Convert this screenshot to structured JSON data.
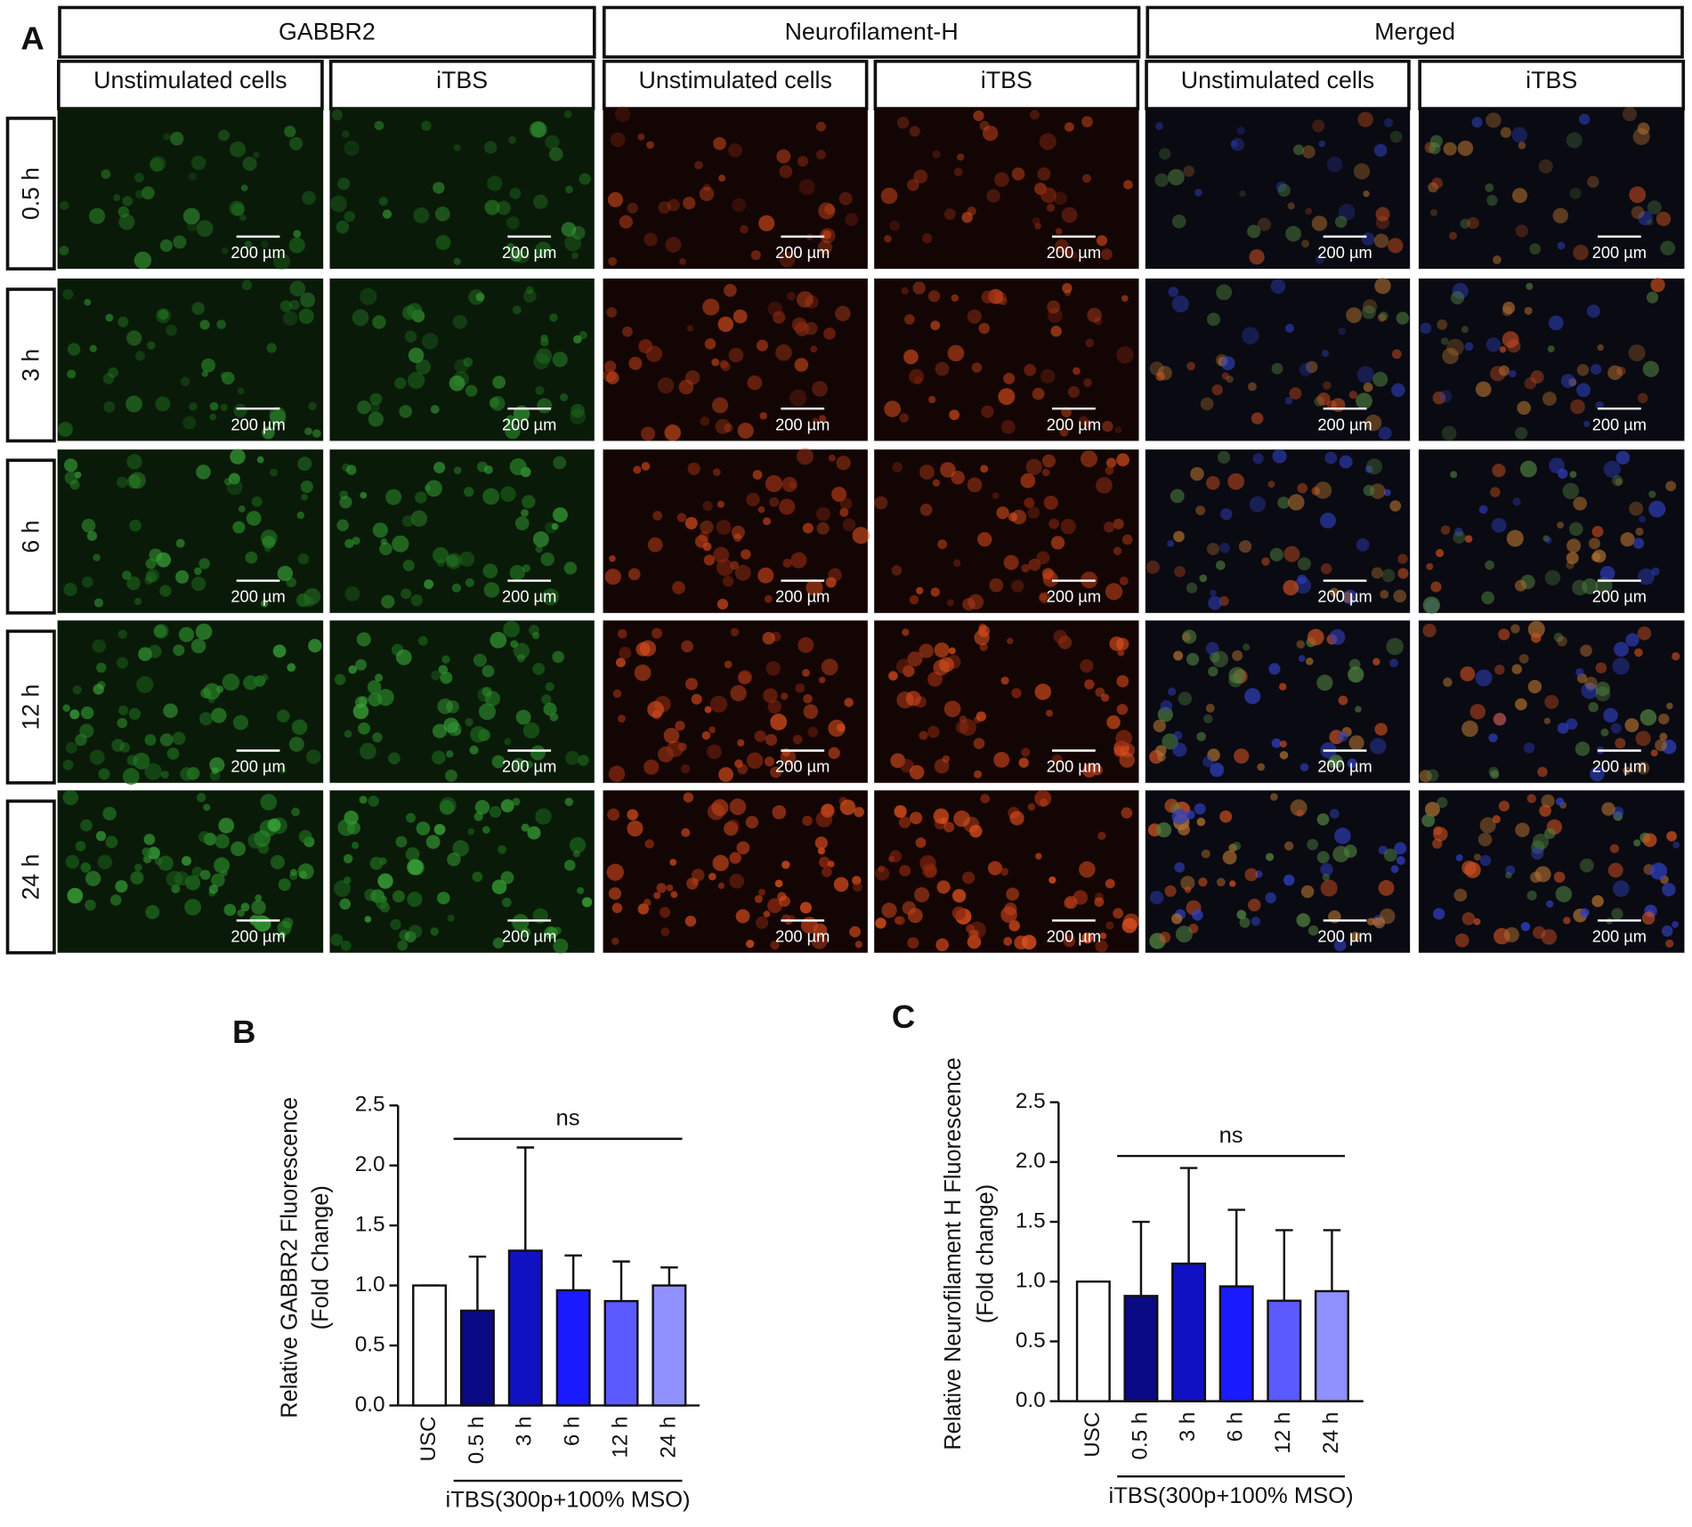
{
  "panel_a": {
    "label": "A",
    "groups": [
      "GABBR2",
      "Neurofilament-H",
      "Merged"
    ],
    "group_colors": [
      "#22aa22",
      "#dd1111",
      "#111111"
    ],
    "subheaders": [
      "Unstimulated cells",
      "iTBS",
      "Unstimulated cells",
      "iTBS",
      "Unstimulated cells",
      "iTBS"
    ],
    "rows": [
      "0.5 h",
      "3 h",
      "6 h",
      "12 h",
      "24 h"
    ],
    "scale_bar": "200 µm"
  },
  "chart_data": [
    {
      "type": "bar",
      "panel_label": "B",
      "ylabel": [
        "Relative GABBR2  Fluorescence",
        "(Fold Change)"
      ],
      "categories": [
        "USC",
        "0.5 h",
        "3 h",
        "6 h",
        "12 h",
        "24 h"
      ],
      "values": [
        1.0,
        0.79,
        1.29,
        0.96,
        0.87,
        1.0
      ],
      "errors": [
        0,
        0.45,
        0.86,
        0.29,
        0.33,
        0.15
      ],
      "colors": [
        "#ffffff",
        "#0a0a84",
        "#1111c4",
        "#1a1aff",
        "#5a5aff",
        "#9090ff"
      ],
      "ylim": [
        0,
        2.5
      ],
      "yticks": [
        {
          "value": 0,
          "label": "0.0"
        },
        0.5,
        {
          "value": 1,
          "label": "1.0"
        },
        1.5,
        {
          "value": 2,
          "label": "2.0"
        },
        2.5
      ],
      "annotation": "ns",
      "group_label": "iTBS(300p+100% MSO)"
    },
    {
      "type": "bar",
      "panel_label": "C",
      "ylabel": [
        "Relative Neurofilament H  Fluorescence",
        "(Fold change)"
      ],
      "categories": [
        "USC",
        "0.5 h",
        "3 h",
        "6 h",
        "12 h",
        "24 h"
      ],
      "values": [
        1.0,
        0.88,
        1.15,
        0.96,
        0.84,
        0.92
      ],
      "errors": [
        0,
        0.62,
        0.8,
        0.64,
        0.59,
        0.51
      ],
      "colors": [
        "#ffffff",
        "#0a0a84",
        "#1111c4",
        "#1a1aff",
        "#5a5aff",
        "#9090ff"
      ],
      "ylim": [
        0,
        2.5
      ],
      "yticks": [
        {
          "value": 0,
          "label": "0.0"
        },
        0.5,
        {
          "value": 1,
          "label": "1.0"
        },
        1.5,
        {
          "value": 2,
          "label": "2.0"
        },
        2.5
      ],
      "annotation": "ns",
      "group_label": "iTBS(300p+100% MSO)"
    }
  ]
}
